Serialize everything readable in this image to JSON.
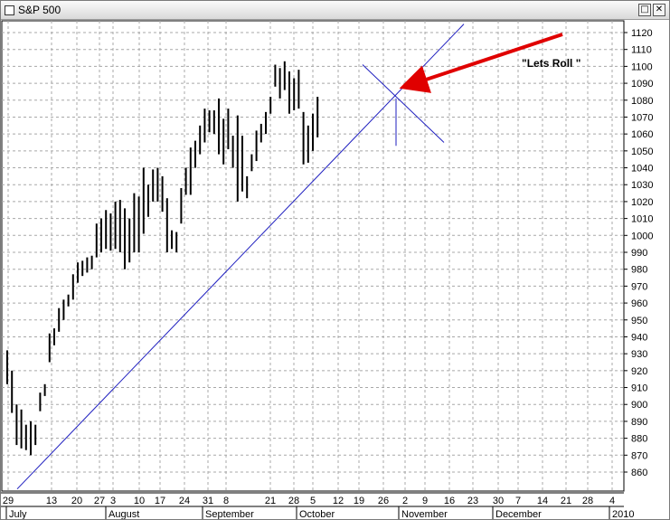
{
  "window": {
    "title": "S&P 500",
    "restore_glyph": "□",
    "close_glyph": "✕"
  },
  "chart_data": {
    "type": "bar",
    "subtype": "ohlc",
    "title": "S&P 500",
    "ylim": [
      850,
      1125
    ],
    "y_ticks": [
      860,
      870,
      880,
      890,
      900,
      910,
      920,
      930,
      940,
      950,
      960,
      970,
      980,
      990,
      1000,
      1010,
      1020,
      1030,
      1040,
      1050,
      1060,
      1070,
      1080,
      1090,
      1100,
      1110,
      1120
    ],
    "grid": true,
    "x_tick_labels": [
      "29",
      "13",
      "20",
      "27",
      "3",
      "10",
      "17",
      "24",
      "31",
      "8",
      "21",
      "28",
      "5",
      "12",
      "19",
      "26",
      "2",
      "9",
      "16",
      "23",
      "30",
      "7",
      "14",
      "21",
      "28",
      "4"
    ],
    "month_labels": [
      "July",
      "August",
      "September",
      "October",
      "November",
      "December",
      "2010"
    ],
    "bars_high": [
      932,
      920,
      900,
      897,
      888,
      890,
      888,
      907,
      912,
      942,
      945,
      957,
      962,
      965,
      977,
      984,
      985,
      987,
      988,
      1007,
      1010,
      1015,
      1013,
      1020,
      1021,
      1016,
      1010,
      1025,
      1023,
      1040,
      1030,
      1039,
      1040,
      1035,
      1022,
      1003,
      1002,
      1028,
      1040,
      1052,
      1056,
      1065,
      1075,
      1074,
      1074,
      1081,
      1069,
      1075,
      1059,
      1071,
      1059,
      1035,
      1048,
      1062,
      1066,
      1073,
      1082,
      1101,
      1099,
      1103,
      1097,
      1093,
      1098,
      1073,
      1065,
      1072,
      1082
    ],
    "bars_low": [
      912,
      895,
      876,
      874,
      873,
      870,
      876,
      896,
      905,
      925,
      935,
      943,
      950,
      958,
      962,
      972,
      976,
      978,
      980,
      987,
      990,
      992,
      991,
      992,
      990,
      980,
      984,
      990,
      990,
      1001,
      1011,
      1020,
      1020,
      1014,
      990,
      992,
      990,
      1007,
      1024,
      1024,
      1040,
      1048,
      1055,
      1061,
      1060,
      1048,
      1042,
      1051,
      1040,
      1020,
      1026,
      1022,
      1038,
      1044,
      1055,
      1060,
      1072,
      1088,
      1081,
      1086,
      1072,
      1074,
      1075,
      1042,
      1043,
      1050,
      1058
    ],
    "lines": [
      {
        "name": "uptrend",
        "points": [
          [
            "Jul 9",
            850
          ],
          [
            "Oct 2",
            1028
          ],
          [
            "Nov 2",
            1083
          ]
        ]
      },
      {
        "name": "downtrend",
        "points": [
          [
            "Oct 19",
            1101
          ],
          [
            "Nov 9",
            1055
          ]
        ]
      }
    ],
    "annotations": [
      {
        "text": "\"Lets Roll \"",
        "points_to": [
          "Nov 2",
          1081
        ]
      }
    ]
  }
}
